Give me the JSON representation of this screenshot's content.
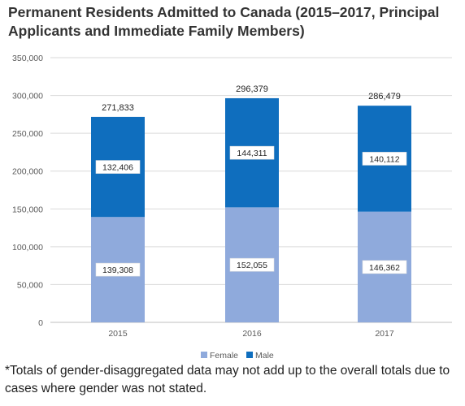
{
  "chart_data": {
    "type": "bar",
    "stacked": true,
    "title": "Permanent Residents Admitted to Canada (2015–2017, Principal Applicants and Immediate Family Members)",
    "categories": [
      "2015",
      "2016",
      "2017"
    ],
    "series": [
      {
        "name": "Female",
        "values": [
          139308,
          152055,
          146362
        ],
        "labels": [
          "139,308",
          "152,055",
          "146,362"
        ],
        "color": "#8faadc"
      },
      {
        "name": "Male",
        "values": [
          132406,
          144311,
          140112
        ],
        "labels": [
          "132,406",
          "144,311",
          "140,112"
        ],
        "color": "#0f6ebe"
      }
    ],
    "totals": {
      "values": [
        271833,
        296379,
        286479
      ],
      "labels": [
        "271,833",
        "296,379",
        "286,479"
      ]
    },
    "ylim": [
      0,
      350000
    ],
    "yticks": [
      {
        "value": 0,
        "label": "0"
      },
      {
        "value": 50000,
        "label": "50,000"
      },
      {
        "value": 100000,
        "label": "100,000"
      },
      {
        "value": 150000,
        "label": "150,000"
      },
      {
        "value": 200000,
        "label": "200,000"
      },
      {
        "value": 250000,
        "label": "250,000"
      },
      {
        "value": 300000,
        "label": "300,000"
      },
      {
        "value": 350000,
        "label": "350,000"
      }
    ],
    "xlabel": "",
    "ylabel": "",
    "grid": true,
    "legend": "bottom-center"
  },
  "footnote": "*Totals of gender-disaggregated data may not add up to the overall totals due to cases where gender was not stated."
}
